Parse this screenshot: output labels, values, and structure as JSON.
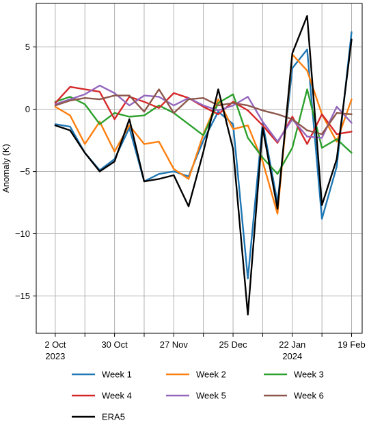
{
  "chart_data": {
    "type": "line",
    "title": "",
    "xlabel": "",
    "ylabel": "Anomaly (K)",
    "ylim": [
      -18,
      8.5
    ],
    "yticks": [
      5,
      0,
      -5,
      -10,
      -15
    ],
    "ytick_labels": [
      "5",
      "0",
      "−5",
      "−10",
      "−15"
    ],
    "x": [
      "2023-10-02",
      "2023-10-09",
      "2023-10-16",
      "2023-10-23",
      "2023-10-30",
      "2023-11-06",
      "2023-11-13",
      "2023-11-20",
      "2023-11-27",
      "2023-12-04",
      "2023-12-11",
      "2023-12-18",
      "2023-12-25",
      "2024-01-01",
      "2024-01-08",
      "2024-01-15",
      "2024-01-22",
      "2024-01-29",
      "2024-02-05",
      "2024-02-12",
      "2024-02-19"
    ],
    "xlim": [
      "2023-09-23",
      "2024-02-24"
    ],
    "xticks": [
      {
        "date": "2023-10-02",
        "line1": "2 Oct",
        "line2": "2023"
      },
      {
        "date": "2023-10-30",
        "line1": "30 Oct",
        "line2": ""
      },
      {
        "date": "2023-11-27",
        "line1": "27 Nov",
        "line2": ""
      },
      {
        "date": "2023-12-25",
        "line1": "25 Dec",
        "line2": ""
      },
      {
        "date": "2024-01-22",
        "line1": "22 Jan",
        "line2": "2024"
      },
      {
        "date": "2024-02-19",
        "line1": "19 Feb",
        "line2": ""
      }
    ],
    "x_minor_ticks": [
      "2023-10-16",
      "2023-11-13",
      "2023-12-11",
      "2024-01-08",
      "2024-02-05"
    ],
    "grid": true,
    "legend_position": "bottom",
    "series": [
      {
        "name": "Week 1",
        "color": "#1f77b4",
        "values": [
          -1.2,
          -1.4,
          -3.5,
          -4.9,
          -4.0,
          -1.5,
          -5.8,
          -5.2,
          -5.0,
          -5.4,
          -2.5,
          -0.2,
          -1.2,
          -13.6,
          -1.1,
          -7.5,
          3.3,
          4.8,
          -8.8,
          -4.6,
          6.2
        ]
      },
      {
        "name": "Week 2",
        "color": "#ff7f0e",
        "values": [
          0.2,
          -0.5,
          -2.8,
          -1.0,
          -3.4,
          -1.3,
          -2.8,
          -2.6,
          -4.8,
          -5.6,
          -2.0,
          0.8,
          -1.6,
          -1.3,
          -4.2,
          -8.4,
          4.4,
          3.1,
          -0.4,
          -2.6,
          0.8
        ]
      },
      {
        "name": "Week 3",
        "color": "#2ca02c",
        "values": [
          0.6,
          1.0,
          0.4,
          -1.2,
          -0.3,
          -0.6,
          -0.5,
          0.3,
          -0.3,
          -1.2,
          -2.1,
          0.5,
          1.2,
          -2.3,
          -3.9,
          -5.2,
          -3.1,
          1.6,
          -3.1,
          -2.4,
          -3.5
        ]
      },
      {
        "name": "Week 4",
        "color": "#d62728",
        "values": [
          0.5,
          1.8,
          1.6,
          1.4,
          -0.8,
          1.0,
          0.6,
          0.1,
          1.3,
          0.9,
          0.2,
          -0.4,
          0.6,
          -0.1,
          -1.3,
          -2.7,
          -0.6,
          -2.8,
          -0.4,
          -2.0,
          -1.8
        ]
      },
      {
        "name": "Week 5",
        "color": "#9467bd",
        "values": [
          0.4,
          0.8,
          1.2,
          1.9,
          1.3,
          0.3,
          1.1,
          1.0,
          0.3,
          0.9,
          0.3,
          -0.1,
          0.3,
          1.0,
          -1.0,
          -2.6,
          -0.8,
          -2.2,
          -2.3,
          0.2,
          -1.1
        ]
      },
      {
        "name": "Week 6",
        "color": "#8c564b",
        "values": [
          0.3,
          0.7,
          0.9,
          0.8,
          1.1,
          1.1,
          -0.2,
          1.6,
          -0.3,
          0.8,
          0.9,
          0.3,
          0.5,
          0.3,
          -0.1,
          -0.4,
          -0.8,
          -1.7,
          -2.0,
          -0.3,
          -0.4
        ]
      },
      {
        "name": "ERA5",
        "color": "#000000",
        "values": [
          -1.3,
          -1.7,
          -3.5,
          -5.0,
          -4.2,
          -0.8,
          -5.8,
          -5.6,
          -5.3,
          -7.8,
          -3.4,
          1.6,
          -3.2,
          -16.5,
          -1.5,
          -8.0,
          4.5,
          7.5,
          -7.7,
          -4.0,
          5.6
        ]
      }
    ]
  }
}
